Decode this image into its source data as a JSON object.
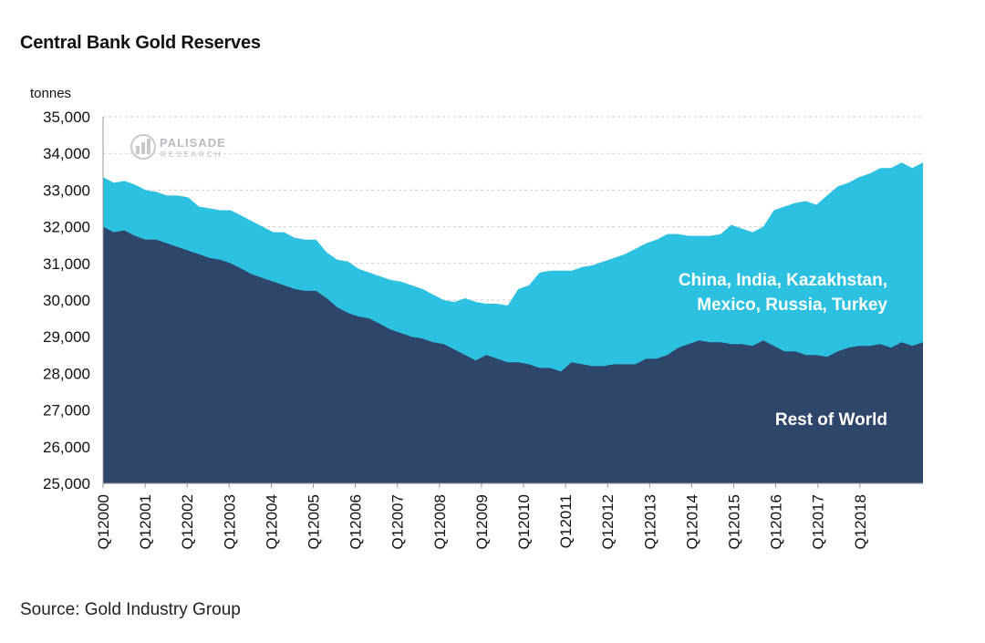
{
  "page": {
    "title": "Central Bank Gold Reserves",
    "source": "Source: Gold Industry Group",
    "watermark": {
      "name": "PALISADE",
      "sub": "RESEARCH"
    }
  },
  "colors": {
    "top_area": "#2cc1e0",
    "bottom_area": "#2e4669",
    "grid": "#cfcfcf",
    "axis": "#999999"
  },
  "chart_data": {
    "type": "area",
    "stacked": true,
    "title": "Central Bank Gold Reserves",
    "ylabel": "tonnes",
    "ylim": [
      25000,
      35000
    ],
    "yticks": [
      25000,
      26000,
      27000,
      28000,
      29000,
      30000,
      31000,
      32000,
      33000,
      34000,
      35000
    ],
    "ytick_labels": [
      "25,000",
      "26,000",
      "27,000",
      "28,000",
      "29,000",
      "30,000",
      "31,000",
      "32,000",
      "33,000",
      "34,000",
      "35,000"
    ],
    "xtick_labels": [
      "Q12000",
      "Q12001",
      "Q12002",
      "Q12003",
      "Q12004",
      "Q12005",
      "Q12006",
      "Q12007",
      "Q12008",
      "Q12009",
      "Q12010",
      "Q12011",
      "Q12012",
      "Q12013",
      "Q12014",
      "Q12015",
      "Q12016",
      "Q12017",
      "Q12018"
    ],
    "x_start_year": 2000,
    "points_per_year": 4,
    "grid": "horizontal dashed",
    "series": [
      {
        "name": "Rest of World",
        "label_lines": [
          "Rest of World"
        ],
        "values": [
          32000,
          31850,
          31900,
          31750,
          31650,
          31650,
          31550,
          31450,
          31350,
          31250,
          31150,
          31100,
          31000,
          30850,
          30700,
          30600,
          30500,
          30400,
          30300,
          30250,
          30250,
          30050,
          29800,
          29650,
          29550,
          29500,
          29350,
          29200,
          29100,
          29000,
          28950,
          28850,
          28800,
          28650,
          28500,
          28350,
          28500,
          28400,
          28300,
          28300,
          28250,
          28150,
          28150,
          28050,
          28300,
          28250,
          28200,
          28200,
          28250,
          28250,
          28250,
          28400,
          28400,
          28500,
          28700,
          28800,
          28900,
          28850,
          28850,
          28800,
          28800,
          28750,
          28900,
          28750,
          28600,
          28600,
          28500,
          28500,
          28450,
          28600,
          28700,
          28750,
          28750,
          28800,
          28700,
          28850,
          28750,
          28850
        ]
      },
      {
        "name": "China, India, Kazakhstan, Mexico, Russia, Turkey",
        "label_lines": [
          "China, India, Kazakhstan,",
          "Mexico, Russia, Turkey"
        ],
        "totals": [
          33350,
          33200,
          33250,
          33150,
          33000,
          32950,
          32850,
          32850,
          32800,
          32550,
          32500,
          32450,
          32450,
          32300,
          32150,
          32000,
          31850,
          31850,
          31700,
          31650,
          31650,
          31300,
          31100,
          31050,
          30850,
          30750,
          30650,
          30550,
          30500,
          30400,
          30300,
          30150,
          30000,
          29950,
          30050,
          29950,
          29900,
          29900,
          29850,
          30300,
          30400,
          30750,
          30800,
          30800,
          30800,
          30900,
          30950,
          31050,
          31150,
          31250,
          31400,
          31550,
          31650,
          31800,
          31800,
          31750,
          31750,
          31750,
          31800,
          32050,
          31950,
          31850,
          32000,
          32450,
          32550,
          32650,
          32700,
          32600,
          32850,
          33100,
          33200,
          33350,
          33450,
          33600,
          33600,
          33750,
          33600,
          33750
        ]
      }
    ]
  }
}
